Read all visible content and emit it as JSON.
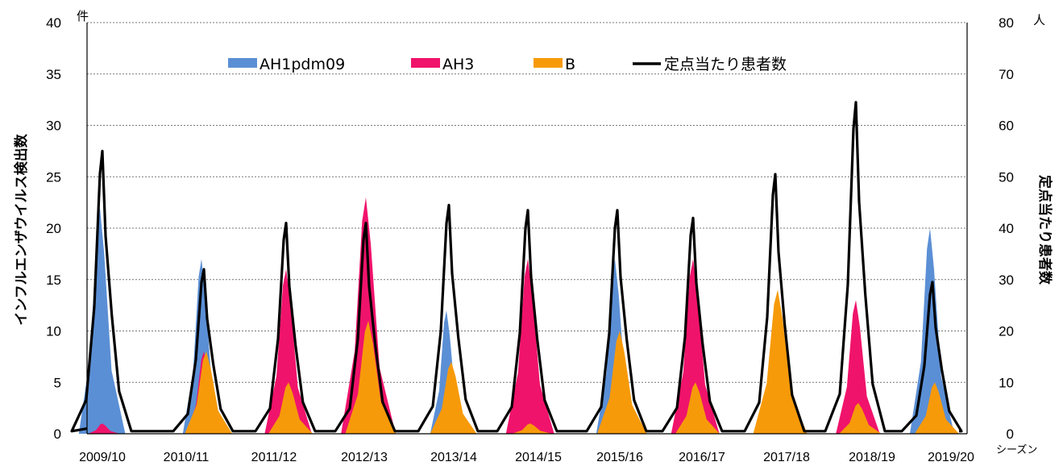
{
  "chart_data": {
    "type": "area",
    "title": "",
    "ylabel_left": "インフルエンザウイルス検出数",
    "ylabel_right": "定点当たり患者数",
    "unit_left": "件",
    "unit_right": "人",
    "xlabel": "シーズン",
    "ylim_left": [
      0,
      40
    ],
    "ylim_right": [
      0,
      80
    ],
    "yticks_left": [
      "0",
      "5",
      "10",
      "15",
      "20",
      "25",
      "30",
      "35",
      "40"
    ],
    "yticks_right": [
      "0",
      "10",
      "20",
      "30",
      "40",
      "50",
      "60",
      "70",
      "80"
    ],
    "grid": true,
    "legend_position": "top",
    "colors": {
      "AH1pdm09": "#5B8FD5",
      "AH3": "#F0136B",
      "B": "#F79A0A",
      "line": "#000000"
    },
    "categories": [
      "2009/10",
      "2010/11",
      "2011/12",
      "2012/13",
      "2013/14",
      "2014/15",
      "2015/16",
      "2016/17",
      "2017/18",
      "2018/19",
      "2019/20"
    ],
    "series": [
      {
        "name": "AH1pdm09",
        "kind": "area",
        "axis": "left",
        "peaks": [
          22,
          17,
          0,
          0,
          12,
          0,
          17,
          0,
          0,
          6,
          20
        ]
      },
      {
        "name": "AH3",
        "kind": "area",
        "axis": "left",
        "peaks": [
          1,
          8,
          16,
          23,
          3,
          17,
          2,
          17,
          4,
          13,
          3
        ]
      },
      {
        "name": "B",
        "kind": "area",
        "axis": "left",
        "peaks": [
          0,
          8,
          5,
          11,
          7,
          1,
          10,
          5,
          14,
          3,
          5
        ]
      },
      {
        "name": "定点当たり患者数",
        "kind": "line",
        "axis": "right",
        "peaks": [
          55,
          32,
          41,
          41,
          44.5,
          43.5,
          43.5,
          42,
          50.5,
          64.5,
          29.5
        ]
      }
    ]
  }
}
